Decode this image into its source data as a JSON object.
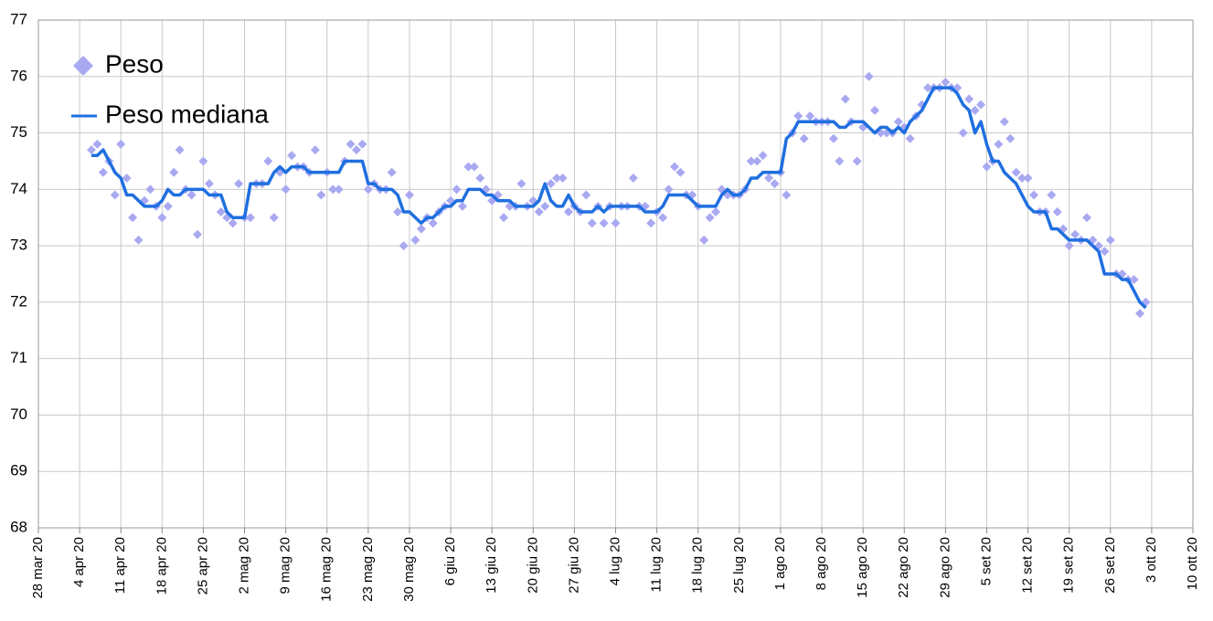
{
  "chart_data": {
    "type": "line",
    "legend": "top-left",
    "grid": true,
    "ylim": [
      68,
      77
    ],
    "yticks": [
      68,
      69,
      70,
      71,
      72,
      73,
      74,
      75,
      76,
      77
    ],
    "xlim": [
      "2020-03-28",
      "2020-10-10"
    ],
    "xticks": [
      {
        "value": "2020-03-28",
        "label": "28 mar 20"
      },
      {
        "value": "2020-04-04",
        "label": "4 apr 20"
      },
      {
        "value": "2020-04-11",
        "label": "11 apr 20"
      },
      {
        "value": "2020-04-18",
        "label": "18 apr 20"
      },
      {
        "value": "2020-04-25",
        "label": "25 apr 20"
      },
      {
        "value": "2020-05-02",
        "label": "2 mag 20"
      },
      {
        "value": "2020-05-09",
        "label": "9 mag 20"
      },
      {
        "value": "2020-05-16",
        "label": "16 mag 20"
      },
      {
        "value": "2020-05-23",
        "label": "23 mag 20"
      },
      {
        "value": "2020-05-30",
        "label": "30 mag 20"
      },
      {
        "value": "2020-06-06",
        "label": "6 giu 20"
      },
      {
        "value": "2020-06-13",
        "label": "13 giu 20"
      },
      {
        "value": "2020-06-20",
        "label": "20 giu 20"
      },
      {
        "value": "2020-06-27",
        "label": "27 giu 20"
      },
      {
        "value": "2020-07-04",
        "label": "4 lug 20"
      },
      {
        "value": "2020-07-11",
        "label": "11 lug 20"
      },
      {
        "value": "2020-07-18",
        "label": "18 lug 20"
      },
      {
        "value": "2020-07-25",
        "label": "25 lug 20"
      },
      {
        "value": "2020-08-01",
        "label": "1 ago 20"
      },
      {
        "value": "2020-08-08",
        "label": "8 ago 20"
      },
      {
        "value": "2020-08-15",
        "label": "15 ago 20"
      },
      {
        "value": "2020-08-22",
        "label": "22 ago 20"
      },
      {
        "value": "2020-08-29",
        "label": "29 ago 20"
      },
      {
        "value": "2020-09-05",
        "label": "5 set 20"
      },
      {
        "value": "2020-09-12",
        "label": "12 set 20"
      },
      {
        "value": "2020-09-19",
        "label": "19 set 20"
      },
      {
        "value": "2020-09-26",
        "label": "26 set 20"
      },
      {
        "value": "2020-10-03",
        "label": "3 ott 20"
      },
      {
        "value": "2020-10-10",
        "label": "10 ott 20"
      }
    ],
    "x": [
      "2020-04-06",
      "2020-04-07",
      "2020-04-08",
      "2020-04-09",
      "2020-04-10",
      "2020-04-11",
      "2020-04-12",
      "2020-04-13",
      "2020-04-14",
      "2020-04-15",
      "2020-04-16",
      "2020-04-17",
      "2020-04-18",
      "2020-04-19",
      "2020-04-20",
      "2020-04-21",
      "2020-04-22",
      "2020-04-23",
      "2020-04-24",
      "2020-04-25",
      "2020-04-26",
      "2020-04-27",
      "2020-04-28",
      "2020-04-29",
      "2020-04-30",
      "2020-05-01",
      "2020-05-02",
      "2020-05-03",
      "2020-05-04",
      "2020-05-05",
      "2020-05-06",
      "2020-05-07",
      "2020-05-08",
      "2020-05-09",
      "2020-05-10",
      "2020-05-11",
      "2020-05-12",
      "2020-05-13",
      "2020-05-14",
      "2020-05-15",
      "2020-05-16",
      "2020-05-17",
      "2020-05-18",
      "2020-05-19",
      "2020-05-20",
      "2020-05-21",
      "2020-05-22",
      "2020-05-23",
      "2020-05-24",
      "2020-05-25",
      "2020-05-26",
      "2020-05-27",
      "2020-05-28",
      "2020-05-29",
      "2020-05-30",
      "2020-05-31",
      "2020-06-01",
      "2020-06-02",
      "2020-06-03",
      "2020-06-04",
      "2020-06-05",
      "2020-06-06",
      "2020-06-07",
      "2020-06-08",
      "2020-06-09",
      "2020-06-10",
      "2020-06-11",
      "2020-06-12",
      "2020-06-13",
      "2020-06-14",
      "2020-06-15",
      "2020-06-16",
      "2020-06-17",
      "2020-06-18",
      "2020-06-19",
      "2020-06-20",
      "2020-06-21",
      "2020-06-22",
      "2020-06-23",
      "2020-06-24",
      "2020-06-25",
      "2020-06-26",
      "2020-06-27",
      "2020-06-28",
      "2020-06-29",
      "2020-06-30",
      "2020-07-01",
      "2020-07-02",
      "2020-07-03",
      "2020-07-04",
      "2020-07-05",
      "2020-07-06",
      "2020-07-07",
      "2020-07-08",
      "2020-07-09",
      "2020-07-10",
      "2020-07-11",
      "2020-07-12",
      "2020-07-13",
      "2020-07-14",
      "2020-07-15",
      "2020-07-16",
      "2020-07-17",
      "2020-07-18",
      "2020-07-19",
      "2020-07-20",
      "2020-07-21",
      "2020-07-22",
      "2020-07-23",
      "2020-07-24",
      "2020-07-25",
      "2020-07-26",
      "2020-07-27",
      "2020-07-28",
      "2020-07-29",
      "2020-07-30",
      "2020-07-31",
      "2020-08-01",
      "2020-08-02",
      "2020-08-03",
      "2020-08-04",
      "2020-08-05",
      "2020-08-06",
      "2020-08-07",
      "2020-08-08",
      "2020-08-09",
      "2020-08-10",
      "2020-08-11",
      "2020-08-12",
      "2020-08-13",
      "2020-08-14",
      "2020-08-15",
      "2020-08-16",
      "2020-08-17",
      "2020-08-18",
      "2020-08-19",
      "2020-08-20",
      "2020-08-21",
      "2020-08-22",
      "2020-08-23",
      "2020-08-24",
      "2020-08-25",
      "2020-08-26",
      "2020-08-27",
      "2020-08-28",
      "2020-08-29",
      "2020-08-30",
      "2020-08-31",
      "2020-09-01",
      "2020-09-02",
      "2020-09-03",
      "2020-09-04",
      "2020-09-05",
      "2020-09-06",
      "2020-09-07",
      "2020-09-08",
      "2020-09-09",
      "2020-09-10",
      "2020-09-11",
      "2020-09-12",
      "2020-09-13",
      "2020-09-14",
      "2020-09-15",
      "2020-09-16",
      "2020-09-17",
      "2020-09-18",
      "2020-09-19",
      "2020-09-20",
      "2020-09-21",
      "2020-09-22",
      "2020-09-23",
      "2020-09-24",
      "2020-09-25",
      "2020-09-26",
      "2020-09-27",
      "2020-09-28",
      "2020-09-29",
      "2020-09-30",
      "2020-10-01",
      "2020-10-02"
    ],
    "series": [
      {
        "name": "Peso",
        "style": "markers",
        "color": "#a9a9f2",
        "values": [
          74.7,
          74.8,
          74.3,
          74.5,
          73.9,
          74.8,
          74.2,
          73.5,
          73.1,
          73.8,
          74.0,
          73.7,
          73.5,
          73.7,
          74.3,
          74.7,
          74.0,
          73.9,
          73.2,
          74.5,
          74.1,
          73.9,
          73.6,
          73.5,
          73.4,
          74.1,
          73.5,
          73.5,
          74.1,
          74.1,
          74.5,
          73.5,
          74.3,
          74.0,
          74.6,
          74.4,
          74.4,
          74.3,
          74.7,
          73.9,
          74.3,
          74.0,
          74.0,
          74.5,
          74.8,
          74.7,
          74.8,
          74.0,
          74.1,
          74.0,
          74.0,
          74.3,
          73.6,
          73.0,
          73.9,
          73.1,
          73.3,
          73.5,
          73.4,
          73.6,
          73.7,
          73.8,
          74.0,
          73.7,
          74.4,
          74.4,
          74.2,
          74.0,
          73.8,
          73.9,
          73.5,
          73.7,
          73.7,
          74.1,
          73.7,
          73.8,
          73.6,
          73.7,
          74.1,
          74.2,
          74.2,
          73.6,
          73.7,
          73.6,
          73.9,
          73.4,
          73.7,
          73.4,
          73.7,
          73.4,
          73.7,
          73.7,
          74.2,
          73.7,
          73.7,
          73.4,
          73.6,
          73.5,
          74.0,
          74.4,
          74.3,
          73.9,
          73.9,
          73.7,
          73.1,
          73.5,
          73.6,
          74.0,
          73.9,
          73.9,
          73.9,
          74.0,
          74.5,
          74.5,
          74.6,
          74.2,
          74.1,
          74.3,
          73.9,
          75.0,
          75.3,
          74.9,
          75.3,
          75.2,
          75.2,
          75.2,
          74.9,
          74.5,
          75.6,
          75.2,
          74.5,
          75.1,
          76.0,
          75.4,
          75.0,
          75.0,
          75.0,
          75.2,
          75.1,
          74.9,
          75.3,
          75.5,
          75.8,
          75.8,
          75.8,
          75.9,
          75.8,
          75.8,
          75.0,
          75.6,
          75.4,
          75.5,
          74.4,
          74.5,
          74.8,
          75.2,
          74.9,
          74.3,
          74.2,
          74.2,
          73.9,
          73.6,
          73.6,
          73.9,
          73.6,
          73.3,
          73.0,
          73.2,
          73.1,
          73.5,
          73.1,
          73.0,
          72.9,
          73.1,
          72.5,
          72.5,
          72.4,
          72.4,
          71.8,
          72.0
        ]
      },
      {
        "name": "Peso mediana",
        "style": "line",
        "color": "#1f6fe0",
        "values": [
          74.6,
          74.6,
          74.7,
          74.5,
          74.3,
          74.2,
          73.9,
          73.9,
          73.8,
          73.7,
          73.7,
          73.7,
          73.8,
          74.0,
          73.9,
          73.9,
          74.0,
          74.0,
          74.0,
          74.0,
          73.9,
          73.9,
          73.9,
          73.6,
          73.5,
          73.5,
          73.5,
          74.1,
          74.1,
          74.1,
          74.1,
          74.3,
          74.4,
          74.3,
          74.4,
          74.4,
          74.4,
          74.3,
          74.3,
          74.3,
          74.3,
          74.3,
          74.3,
          74.5,
          74.5,
          74.5,
          74.5,
          74.1,
          74.1,
          74.0,
          74.0,
          74.0,
          73.9,
          73.6,
          73.6,
          73.5,
          73.4,
          73.5,
          73.5,
          73.6,
          73.7,
          73.7,
          73.8,
          73.8,
          74.0,
          74.0,
          74.0,
          73.9,
          73.9,
          73.8,
          73.8,
          73.8,
          73.7,
          73.7,
          73.7,
          73.7,
          73.8,
          74.1,
          73.8,
          73.7,
          73.7,
          73.9,
          73.7,
          73.6,
          73.6,
          73.6,
          73.7,
          73.6,
          73.7,
          73.7,
          73.7,
          73.7,
          73.7,
          73.7,
          73.6,
          73.6,
          73.6,
          73.7,
          73.9,
          73.9,
          73.9,
          73.9,
          73.8,
          73.7,
          73.7,
          73.7,
          73.7,
          73.9,
          74.0,
          73.9,
          73.9,
          74.0,
          74.2,
          74.2,
          74.3,
          74.3,
          74.3,
          74.3,
          74.9,
          75.0,
          75.2,
          75.2,
          75.2,
          75.2,
          75.2,
          75.2,
          75.2,
          75.1,
          75.1,
          75.2,
          75.2,
          75.2,
          75.1,
          75.0,
          75.1,
          75.1,
          75.0,
          75.1,
          75.0,
          75.2,
          75.3,
          75.4,
          75.6,
          75.8,
          75.8,
          75.8,
          75.8,
          75.7,
          75.5,
          75.4,
          75.0,
          75.2,
          74.8,
          74.5,
          74.5,
          74.3,
          74.2,
          74.1,
          73.9,
          73.7,
          73.6,
          73.6,
          73.6,
          73.3,
          73.3,
          73.2,
          73.1,
          73.1,
          73.1,
          73.1,
          73.0,
          72.9,
          72.5,
          72.5,
          72.5,
          72.4,
          72.4,
          72.2,
          72.0,
          71.9
        ]
      }
    ]
  }
}
